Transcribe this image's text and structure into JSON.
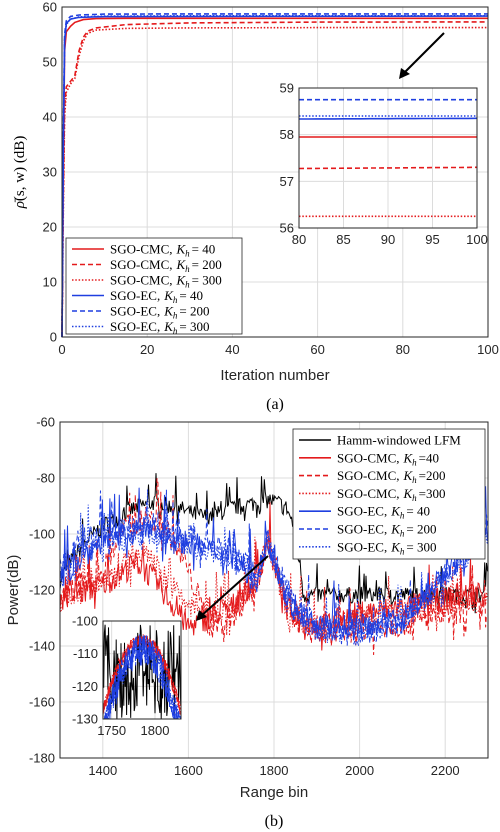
{
  "chart_data": [
    {
      "type": "line",
      "caption": "(a)",
      "xlabel": "Iteration number",
      "ylabel_text": "(s, w) (dB)",
      "ylabel_symbol": "ρ̄",
      "xlim": [
        0,
        100
      ],
      "ylim": [
        0,
        60
      ],
      "xticks": [
        0,
        20,
        40,
        60,
        80,
        100
      ],
      "yticks": [
        0,
        10,
        20,
        30,
        40,
        50,
        60
      ],
      "grid": true,
      "legend_position": "bottom-left",
      "series": [
        {
          "name": "SGO-CMC, K_h = 40",
          "label": "SGO-CMC,",
          "kval": "= 40",
          "color": "#e41a1c",
          "dash": "solid",
          "x": [
            0,
            0.3,
            0.6,
            1,
            2,
            3,
            5,
            8,
            15,
            30,
            60,
            100
          ],
          "y": [
            0,
            30,
            52,
            55.5,
            56.5,
            57.2,
            57.7,
            57.9,
            57.95,
            57.95,
            57.95,
            57.95
          ]
        },
        {
          "name": "SGO-CMC, K_h = 200",
          "label": "SGO-CMC,",
          "kval": "= 200",
          "color": "#e41a1c",
          "dash": "dashed",
          "x": [
            0,
            0.3,
            0.6,
            1,
            2,
            3,
            4,
            5,
            6,
            8,
            15,
            30,
            60,
            100
          ],
          "y": [
            0,
            25,
            42,
            45.5,
            46.5,
            47.5,
            52,
            54.5,
            55.6,
            56.2,
            56.8,
            57.1,
            57.25,
            57.3
          ]
        },
        {
          "name": "SGO-CMC, K_h = 300",
          "label": "SGO-CMC,",
          "kval": "= 300",
          "color": "#e41a1c",
          "dash": "dotted",
          "x": [
            0,
            0.3,
            0.6,
            1,
            2,
            3,
            4,
            5,
            6,
            8,
            15,
            30,
            60,
            100
          ],
          "y": [
            0,
            22,
            40,
            44.5,
            46,
            47,
            51,
            53.8,
            55.2,
            55.8,
            56.1,
            56.2,
            56.25,
            56.25
          ]
        },
        {
          "name": "SGO-EC, K_h = 40",
          "label": "SGO-EC,",
          "kval": "= 40",
          "color": "#1f3fe0",
          "dash": "solid",
          "x": [
            0,
            0.3,
            0.6,
            1,
            2,
            4,
            10,
            30,
            100
          ],
          "y": [
            0,
            35,
            54,
            57,
            57.8,
            58.1,
            58.25,
            58.3,
            58.35
          ]
        },
        {
          "name": "SGO-EC, K_h = 200",
          "label": "SGO-EC,",
          "kval": "= 200",
          "color": "#1f3fe0",
          "dash": "dashed",
          "x": [
            0,
            0.3,
            0.6,
            1,
            2,
            4,
            10,
            30,
            100
          ],
          "y": [
            0,
            36,
            55,
            57.5,
            58.3,
            58.55,
            58.7,
            58.75,
            58.75
          ]
        },
        {
          "name": "SGO-EC, K_h = 300",
          "label": "SGO-EC,",
          "kval": "= 300",
          "color": "#1f3fe0",
          "dash": "dotted",
          "x": [
            0,
            0.3,
            0.6,
            1,
            2,
            4,
            10,
            30,
            100
          ],
          "y": [
            0,
            34,
            53.5,
            56.8,
            57.8,
            58.2,
            58.35,
            58.4,
            58.4
          ]
        }
      ],
      "inset": {
        "xlim": [
          80,
          100
        ],
        "ylim": [
          56,
          59
        ],
        "xticks": [
          80,
          85,
          90,
          95,
          100
        ],
        "yticks": [
          56,
          57,
          58,
          59
        ]
      }
    },
    {
      "type": "line",
      "caption": "(b)",
      "xlabel": "Range bin",
      "ylabel": "Power(dB)",
      "xlim": [
        1300,
        2300
      ],
      "ylim": [
        -180,
        -60
      ],
      "xticks": [
        1400,
        1600,
        1800,
        2000,
        2200
      ],
      "yticks": [
        -180,
        -160,
        -140,
        -120,
        -100,
        -80,
        -60
      ],
      "grid": true,
      "legend_position": "top-right",
      "series": [
        {
          "name": "Hamm-windowed LFM",
          "label": "Hamm-windowed LFM",
          "kval": "",
          "color": "#000000",
          "dash": "solid",
          "x": [
            1300,
            1320,
            1340,
            1360,
            1380,
            1400,
            1430,
            1460,
            1490,
            1520,
            1550,
            1580,
            1610,
            1640,
            1670,
            1700,
            1730,
            1760,
            1790,
            1810,
            1830,
            1850,
            1870,
            2290,
            2300
          ],
          "y": [
            -118,
            -112,
            -108,
            -104,
            -101,
            -98,
            -96,
            -93,
            -91,
            -90,
            -91,
            -92,
            -94,
            -95,
            -94,
            -92,
            -91,
            -90,
            -89,
            -90,
            -92,
            -100,
            -123,
            -123,
            -110
          ]
        },
        {
          "name": "SGO-CMC, K_h=40",
          "label": "SGO-CMC,",
          "kval": "=40",
          "color": "#e41a1c",
          "dash": "solid",
          "x": [
            1300,
            1400,
            1480,
            1520,
            1600,
            1700,
            1760,
            1785,
            1800,
            1830,
            1900,
            2000,
            2100,
            2200,
            2300
          ],
          "y": [
            -125,
            -120,
            -112,
            -118,
            -135,
            -128,
            -118,
            -104,
            -112,
            -128,
            -135,
            -130,
            -128,
            -125,
            -122
          ]
        },
        {
          "name": "SGO-CMC, K_h=200",
          "label": "SGO-CMC,",
          "kval": "=200",
          "color": "#e41a1c",
          "dash": "dashed",
          "x": [
            1300,
            1400,
            1450,
            1500,
            1550,
            1600,
            1650,
            1700,
            1760,
            1785,
            1800,
            1830,
            1900,
            2000,
            2100,
            2300
          ],
          "y": [
            -125,
            -115,
            -100,
            -96,
            -100,
            -115,
            -135,
            -132,
            -120,
            -104,
            -110,
            -130,
            -138,
            -136,
            -134,
            -128
          ]
        },
        {
          "name": "SGO-CMC, K_h=300",
          "label": "SGO-CMC,",
          "kval": "=300",
          "color": "#e41a1c",
          "dash": "dotted",
          "x": [
            1300,
            1400,
            1500,
            1600,
            1700,
            1760,
            1785,
            1800,
            1830,
            1900,
            2000,
            2100,
            2300
          ],
          "y": [
            -128,
            -118,
            -108,
            -128,
            -130,
            -118,
            -104,
            -112,
            -130,
            -136,
            -132,
            -130,
            -126
          ]
        },
        {
          "name": "SGO-EC, K_h = 40",
          "label": "SGO-EC,",
          "kval": "= 40",
          "color": "#1f3fe0",
          "dash": "solid",
          "x": [
            1300,
            1350,
            1400,
            1500,
            1600,
            1700,
            1760,
            1785,
            1800,
            1830,
            1900,
            2000,
            2100,
            2300
          ],
          "y": [
            -118,
            -110,
            -104,
            -100,
            -105,
            -110,
            -118,
            -104,
            -110,
            -125,
            -135,
            -135,
            -132,
            -100
          ]
        },
        {
          "name": "SGO-EC, K_h = 200",
          "label": "SGO-EC,",
          "kval": "= 200",
          "color": "#1f3fe0",
          "dash": "dashed",
          "x": [
            1300,
            1350,
            1400,
            1500,
            1600,
            1700,
            1760,
            1785,
            1800,
            1830,
            1900,
            2000,
            2100,
            2300
          ],
          "y": [
            -115,
            -104,
            -102,
            -99,
            -103,
            -108,
            -116,
            -104,
            -110,
            -122,
            -136,
            -138,
            -134,
            -100
          ]
        },
        {
          "name": "SGO-EC, K_h = 300",
          "label": "SGO-EC,",
          "kval": "= 300",
          "color": "#1f3fe0",
          "dash": "dotted",
          "x": [
            1300,
            1350,
            1400,
            1500,
            1600,
            1700,
            1760,
            1785,
            1800,
            1830,
            1900,
            2000,
            2100,
            2300
          ],
          "y": [
            -120,
            -108,
            -104,
            -101,
            -106,
            -110,
            -119,
            -104,
            -111,
            -126,
            -137,
            -136,
            -133,
            -102
          ]
        }
      ],
      "inset": {
        "xlim": [
          1740,
          1830
        ],
        "ylim": [
          -130,
          -100
        ],
        "xticks": [
          1750,
          1800
        ],
        "yticks": [
          -130,
          -120,
          -110,
          -100
        ]
      }
    }
  ]
}
